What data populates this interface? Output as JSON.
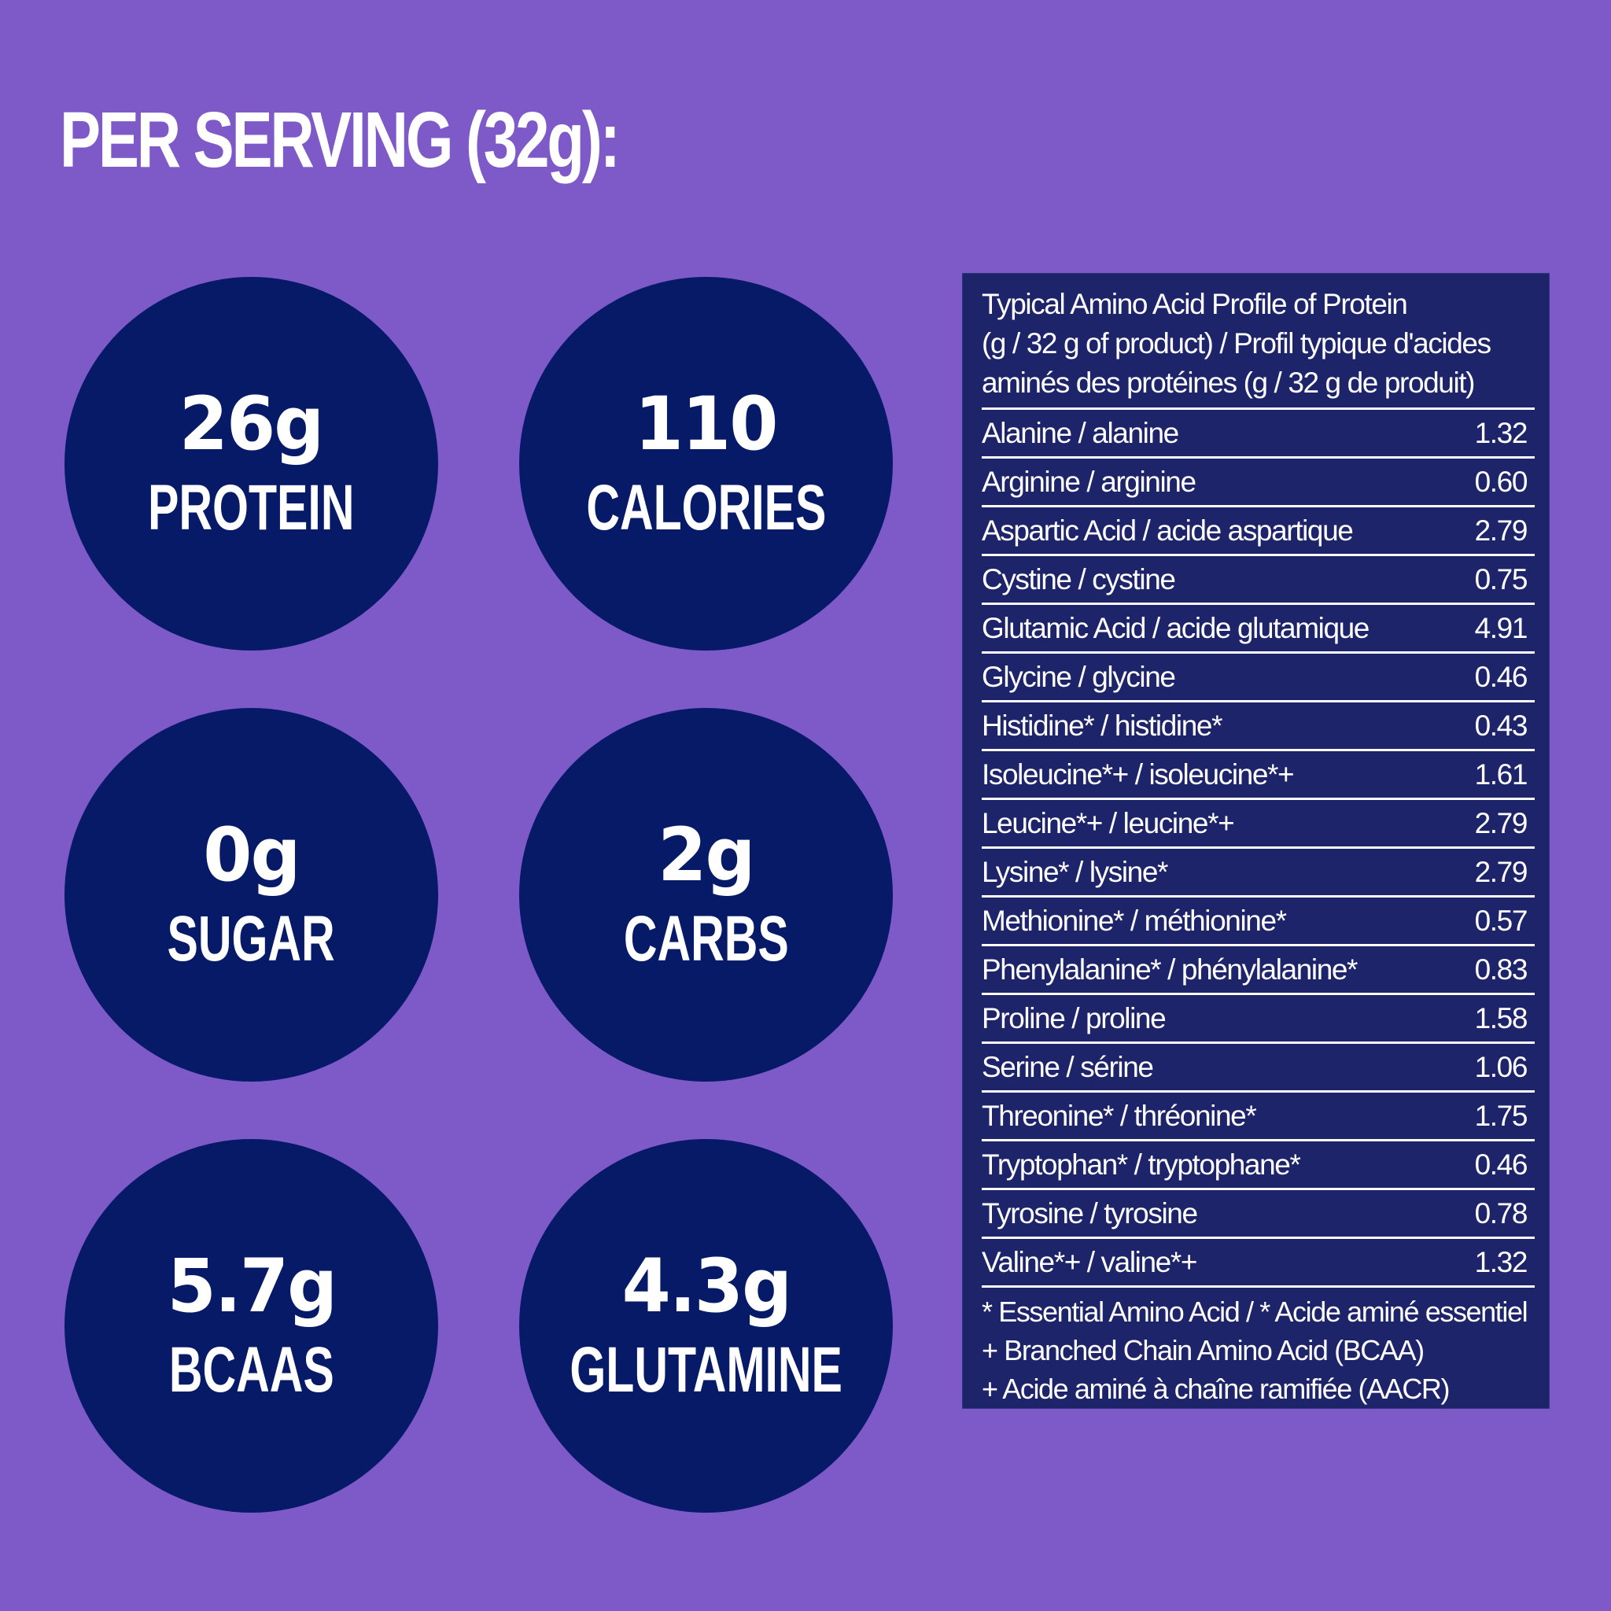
{
  "title": "PER SERVING (32g):",
  "stats": [
    {
      "value": "26g",
      "label": "PROTEIN"
    },
    {
      "value": "110",
      "label": "CALORIES"
    },
    {
      "value": "0g",
      "label": "SUGAR"
    },
    {
      "value": "2g",
      "label": "CARBS"
    },
    {
      "value": "5.7g",
      "label": "BCAAS"
    },
    {
      "value": "4.3g",
      "label": "GLUTAMINE"
    }
  ],
  "amino": {
    "heading": [
      "Typical Amino Acid Profile of Protein",
      "(g / 32 g of product) / Profil typique d'acides",
      "aminés des protéines (g / 32 g de produit)"
    ],
    "rows": [
      {
        "name": "Alanine / alanine",
        "value": "1.32"
      },
      {
        "name": "Arginine / arginine",
        "value": "0.60"
      },
      {
        "name": "Aspartic Acid / acide aspartique",
        "value": "2.79"
      },
      {
        "name": "Cystine / cystine",
        "value": "0.75"
      },
      {
        "name": "Glutamic Acid / acide glutamique",
        "value": "4.91"
      },
      {
        "name": "Glycine / glycine",
        "value": "0.46"
      },
      {
        "name": "Histidine* / histidine*",
        "value": "0.43"
      },
      {
        "name": "Isoleucine*+ / isoleucine*+",
        "value": "1.61"
      },
      {
        "name": "Leucine*+ / leucine*+",
        "value": "2.79"
      },
      {
        "name": "Lysine* / lysine*",
        "value": "2.79"
      },
      {
        "name": "Methionine* / méthionine*",
        "value": "0.57"
      },
      {
        "name": "Phenylalanine* / phénylalanine*",
        "value": "0.83"
      },
      {
        "name": "Proline / proline",
        "value": "1.58"
      },
      {
        "name": "Serine / sérine",
        "value": "1.06"
      },
      {
        "name": "Threonine* / thréonine*",
        "value": "1.75"
      },
      {
        "name": "Tryptophan* / tryptophane*",
        "value": "0.46"
      },
      {
        "name": "Tyrosine / tyrosine",
        "value": "0.78"
      },
      {
        "name": "Valine*+ / valine*+",
        "value": "1.32"
      }
    ],
    "footnotes": [
      "* Essential Amino Acid / * Acide aminé essentiel",
      "+ Branched Chain Amino Acid (BCAA)",
      "+ Acide aminé à chaîne ramifiée (AACR)"
    ]
  },
  "colors": {
    "background": "#7e59c8",
    "circle": "#061a68",
    "panel": "#1e246a",
    "text": "#ffffff"
  }
}
